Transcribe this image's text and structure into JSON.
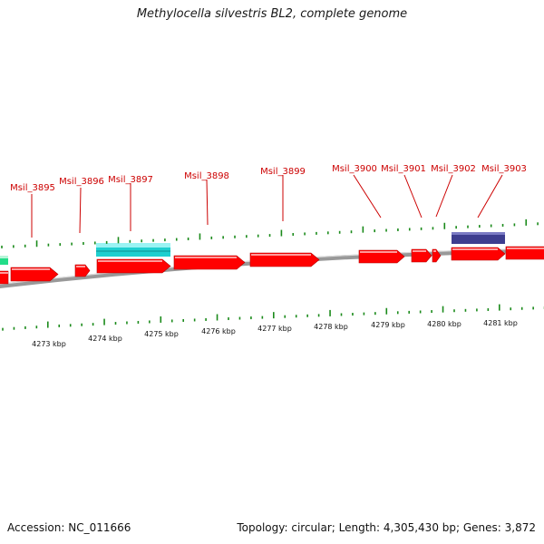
{
  "title": "Methylocella silvestris BL2, complete genome",
  "footer": {
    "accession": "Accession: NC_011666",
    "summary": "Topology: circular; Length: 4,305,430 bp; Genes: 3,872"
  },
  "colors": {
    "cds": "#ff0000",
    "cds_dark": "#b30000",
    "rna_cyan": "#22dddd",
    "misc_feature": "#3d3d8f",
    "green": "#22dd88",
    "backbone": "#7a7a7a",
    "label": "#cc0000",
    "tick": "#1a8a1a"
  },
  "gene_labels": [
    "Msil_3895",
    "Msil_3896",
    "Msil_3897",
    "Msil_3898",
    "Msil_3899",
    "Msil_3900",
    "Msil_3901",
    "Msil_3902",
    "Msil_3903"
  ],
  "axis_labels": [
    "4273 kbp",
    "4274 kbp",
    "4275 kbp",
    "4276 kbp",
    "4277 kbp",
    "4278 kbp",
    "4279 kbp",
    "4280 kbp",
    "4281 kbp"
  ]
}
